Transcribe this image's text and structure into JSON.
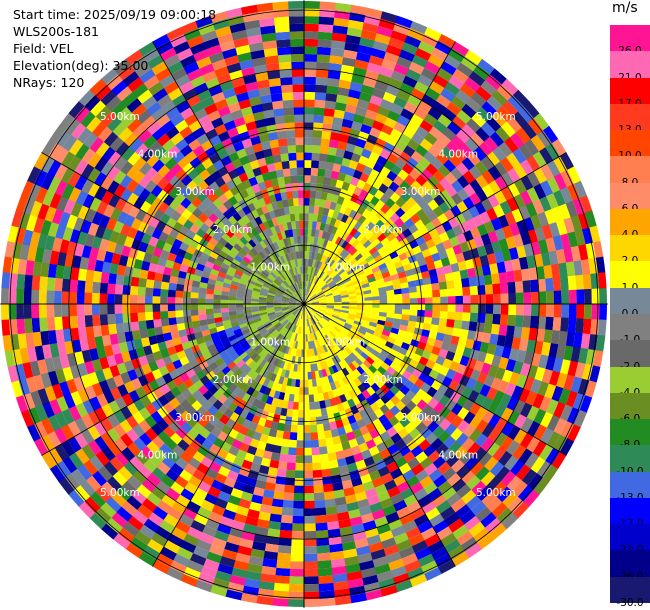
{
  "info": {
    "start_time": "Start time: 2025/09/19 09:00:18",
    "instrument": "WLS200s-181",
    "field": "Field: VEL",
    "elevation": "Elevation(deg): 35.00",
    "nrays": "NRays: 120"
  },
  "colorbar": {
    "unit": "m/s",
    "labels": [
      "26.0",
      "21.0",
      "17.0",
      "13.0",
      "10.0",
      "8.0",
      "6.0",
      "4.0",
      "2.0",
      "1.0",
      "0.0",
      "-1.0",
      "-2.0",
      "-4.0",
      "-6.0",
      "-8.0",
      "-10.0",
      "-13.0",
      "-17.0",
      "-21.0",
      "-26.0",
      "-30.0"
    ],
    "colors": [
      "#ff1493",
      "#ff69b4",
      "#ff0000",
      "#ff3a1e",
      "#ff4500",
      "#ff7f50",
      "#ff8c69",
      "#ffa500",
      "#ffd700",
      "#ffff00",
      "#778899",
      "#808080",
      "#696969",
      "#9acd32",
      "#6b8e23",
      "#228b22",
      "#2e8b57",
      "#4169e1",
      "#0000ff",
      "#0000cd",
      "#00008b",
      "#191970"
    ]
  },
  "chart_data": {
    "type": "heatmap",
    "projection": "polar PPI",
    "field": "VEL",
    "units": "m/s",
    "color_scale_min": -30.0,
    "color_scale_max": 26.0,
    "rays": 120,
    "ring_labels": [
      "1.00km",
      "2.00km",
      "3.00km",
      "4.00km",
      "5.00km"
    ],
    "azimuth_lines_deg": [
      0,
      30,
      60,
      90,
      120,
      150,
      180,
      210,
      240,
      270,
      300,
      330
    ],
    "grid": true
  }
}
